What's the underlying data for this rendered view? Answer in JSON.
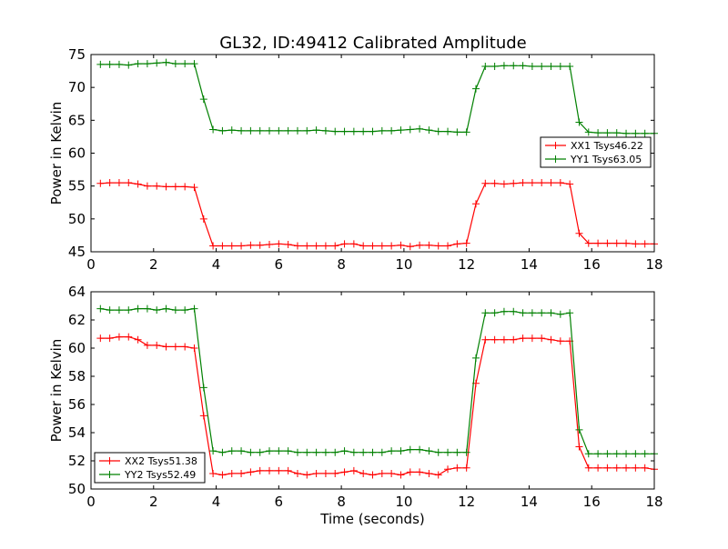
{
  "figure": {
    "title": "GL32, ID:49412 Calibrated Amplitude"
  },
  "chart_data": [
    {
      "type": "line",
      "xlabel": "",
      "ylabel": "Power in Kelvin",
      "xlim": [
        0,
        18
      ],
      "ylim": [
        45,
        75
      ],
      "xticks": [
        "0",
        "2",
        "4",
        "6",
        "8",
        "10",
        "12",
        "14",
        "16",
        "18"
      ],
      "yticks": [
        "45",
        "50",
        "55",
        "60",
        "65",
        "70",
        "75"
      ],
      "grid": false,
      "legend_position": "center-right",
      "x": [
        0.3,
        0.6,
        0.9,
        1.2,
        1.5,
        1.8,
        2.1,
        2.4,
        2.7,
        3.0,
        3.3,
        3.6,
        3.9,
        4.2,
        4.5,
        4.8,
        5.1,
        5.4,
        5.7,
        6.0,
        6.3,
        6.6,
        6.9,
        7.2,
        7.5,
        7.8,
        8.1,
        8.4,
        8.7,
        9.0,
        9.3,
        9.6,
        9.9,
        10.2,
        10.5,
        10.8,
        11.1,
        11.4,
        11.7,
        12.0,
        12.3,
        12.6,
        12.9,
        13.2,
        13.5,
        13.8,
        14.1,
        14.4,
        14.7,
        15.0,
        15.3,
        15.6,
        15.9,
        16.2,
        16.5,
        16.8,
        17.1,
        17.4,
        17.7,
        18.0
      ],
      "series": [
        {
          "name": "XX1 Tsys46.22",
          "color": "#ff0000",
          "values": [
            55.4,
            55.5,
            55.5,
            55.5,
            55.3,
            55.0,
            55.0,
            54.9,
            54.9,
            54.9,
            54.8,
            50.0,
            45.9,
            45.9,
            45.9,
            45.9,
            46.0,
            46.0,
            46.1,
            46.2,
            46.1,
            45.9,
            45.9,
            45.9,
            45.9,
            45.9,
            46.2,
            46.2,
            45.9,
            45.9,
            45.9,
            45.9,
            46.0,
            45.8,
            46.0,
            46.0,
            45.9,
            45.9,
            46.2,
            46.3,
            52.3,
            55.4,
            55.4,
            55.3,
            55.4,
            55.5,
            55.5,
            55.5,
            55.5,
            55.5,
            55.3,
            47.8,
            46.3,
            46.3,
            46.3,
            46.3,
            46.3,
            46.2,
            46.2,
            46.2
          ]
        },
        {
          "name": "YY1 Tsys63.05",
          "color": "#008000",
          "values": [
            73.5,
            73.5,
            73.5,
            73.4,
            73.6,
            73.6,
            73.7,
            73.8,
            73.6,
            73.6,
            73.6,
            68.2,
            63.6,
            63.4,
            63.5,
            63.4,
            63.4,
            63.4,
            63.4,
            63.4,
            63.4,
            63.4,
            63.4,
            63.5,
            63.4,
            63.3,
            63.3,
            63.3,
            63.3,
            63.3,
            63.4,
            63.4,
            63.5,
            63.6,
            63.7,
            63.5,
            63.3,
            63.3,
            63.2,
            63.2,
            69.8,
            73.2,
            73.2,
            73.3,
            73.3,
            73.3,
            73.2,
            73.2,
            73.2,
            73.2,
            73.2,
            64.7,
            63.2,
            63.1,
            63.1,
            63.1,
            63.0,
            63.0,
            63.0,
            63.0
          ]
        }
      ]
    },
    {
      "type": "line",
      "xlabel": "Time (seconds)",
      "ylabel": "Power in Kelvin",
      "xlim": [
        0,
        18
      ],
      "ylim": [
        50,
        64
      ],
      "xticks": [
        "0",
        "2",
        "4",
        "6",
        "8",
        "10",
        "12",
        "14",
        "16",
        "18"
      ],
      "yticks": [
        "50",
        "52",
        "54",
        "56",
        "58",
        "60",
        "62",
        "64"
      ],
      "grid": false,
      "legend_position": "bottom-left",
      "x": [
        0.3,
        0.6,
        0.9,
        1.2,
        1.5,
        1.8,
        2.1,
        2.4,
        2.7,
        3.0,
        3.3,
        3.6,
        3.9,
        4.2,
        4.5,
        4.8,
        5.1,
        5.4,
        5.7,
        6.0,
        6.3,
        6.6,
        6.9,
        7.2,
        7.5,
        7.8,
        8.1,
        8.4,
        8.7,
        9.0,
        9.3,
        9.6,
        9.9,
        10.2,
        10.5,
        10.8,
        11.1,
        11.4,
        11.7,
        12.0,
        12.3,
        12.6,
        12.9,
        13.2,
        13.5,
        13.8,
        14.1,
        14.4,
        14.7,
        15.0,
        15.3,
        15.6,
        15.9,
        16.2,
        16.5,
        16.8,
        17.1,
        17.4,
        17.7,
        18.0
      ],
      "series": [
        {
          "name": "XX2 Tsys51.38",
          "color": "#ff0000",
          "values": [
            60.7,
            60.7,
            60.8,
            60.8,
            60.6,
            60.2,
            60.2,
            60.1,
            60.1,
            60.1,
            60.0,
            55.2,
            51.1,
            51.0,
            51.1,
            51.1,
            51.2,
            51.3,
            51.3,
            51.3,
            51.3,
            51.1,
            51.0,
            51.1,
            51.1,
            51.1,
            51.2,
            51.3,
            51.1,
            51.0,
            51.1,
            51.1,
            51.0,
            51.2,
            51.2,
            51.1,
            51.0,
            51.4,
            51.5,
            51.5,
            57.5,
            60.6,
            60.6,
            60.6,
            60.6,
            60.7,
            60.7,
            60.7,
            60.6,
            60.5,
            60.5,
            53.0,
            51.5,
            51.5,
            51.5,
            51.5,
            51.5,
            51.5,
            51.5,
            51.4
          ]
        },
        {
          "name": "YY2 Tsys52.49",
          "color": "#008000",
          "values": [
            62.8,
            62.7,
            62.7,
            62.7,
            62.8,
            62.8,
            62.7,
            62.8,
            62.7,
            62.7,
            62.8,
            57.2,
            52.7,
            52.6,
            52.7,
            52.7,
            52.6,
            52.6,
            52.7,
            52.7,
            52.7,
            52.6,
            52.6,
            52.6,
            52.6,
            52.6,
            52.7,
            52.6,
            52.6,
            52.6,
            52.6,
            52.7,
            52.7,
            52.8,
            52.8,
            52.7,
            52.6,
            52.6,
            52.6,
            52.6,
            59.3,
            62.5,
            62.5,
            62.6,
            62.6,
            62.5,
            62.5,
            62.5,
            62.5,
            62.4,
            62.5,
            54.2,
            52.5,
            52.5,
            52.5,
            52.5,
            52.5,
            52.5,
            52.5,
            52.5
          ]
        }
      ]
    }
  ]
}
